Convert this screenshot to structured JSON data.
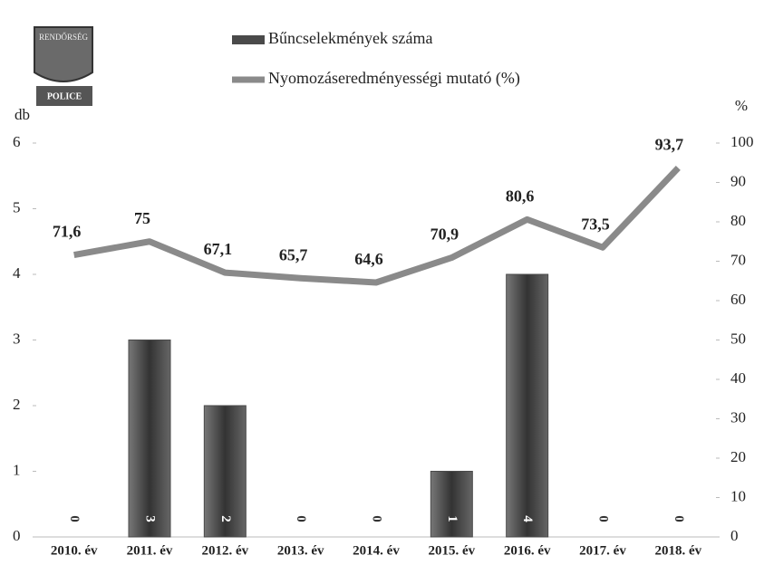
{
  "logo": {
    "top": "RENDŐRSÉG",
    "bottom": "POLICE"
  },
  "chart_data": {
    "type": "combo",
    "categories": [
      "2010. év",
      "2011. év",
      "2012. év",
      "2013. év",
      "2014. év",
      "2015. év",
      "2016. év",
      "2017. év",
      "2018. év"
    ],
    "series": [
      {
        "name": "Bűncselekmények száma",
        "type": "bar",
        "color": "#4a4a4a",
        "values": [
          0,
          3,
          2,
          0,
          0,
          1,
          4,
          0,
          0
        ]
      },
      {
        "name": "Nyomozáseredményességi mutató (%)",
        "type": "line",
        "axis": "y2",
        "color": "#8a8a8a",
        "values": [
          71.6,
          75,
          67.1,
          65.7,
          64.6,
          70.9,
          80.6,
          73.5,
          93.7
        ],
        "value_labels": [
          "71,6",
          "75",
          "67,1",
          "65,7",
          "64,6",
          "70,9",
          "80,6",
          "73,5",
          "93,7"
        ]
      }
    ],
    "y_label": "db",
    "y2_label": "%",
    "ylim": [
      0,
      6
    ],
    "yticks": [
      0,
      1,
      2,
      3,
      4,
      5,
      6
    ],
    "y2lim": [
      0,
      100
    ],
    "y2ticks": [
      0,
      10,
      20,
      30,
      40,
      50,
      60,
      70,
      80,
      90,
      100
    ]
  }
}
